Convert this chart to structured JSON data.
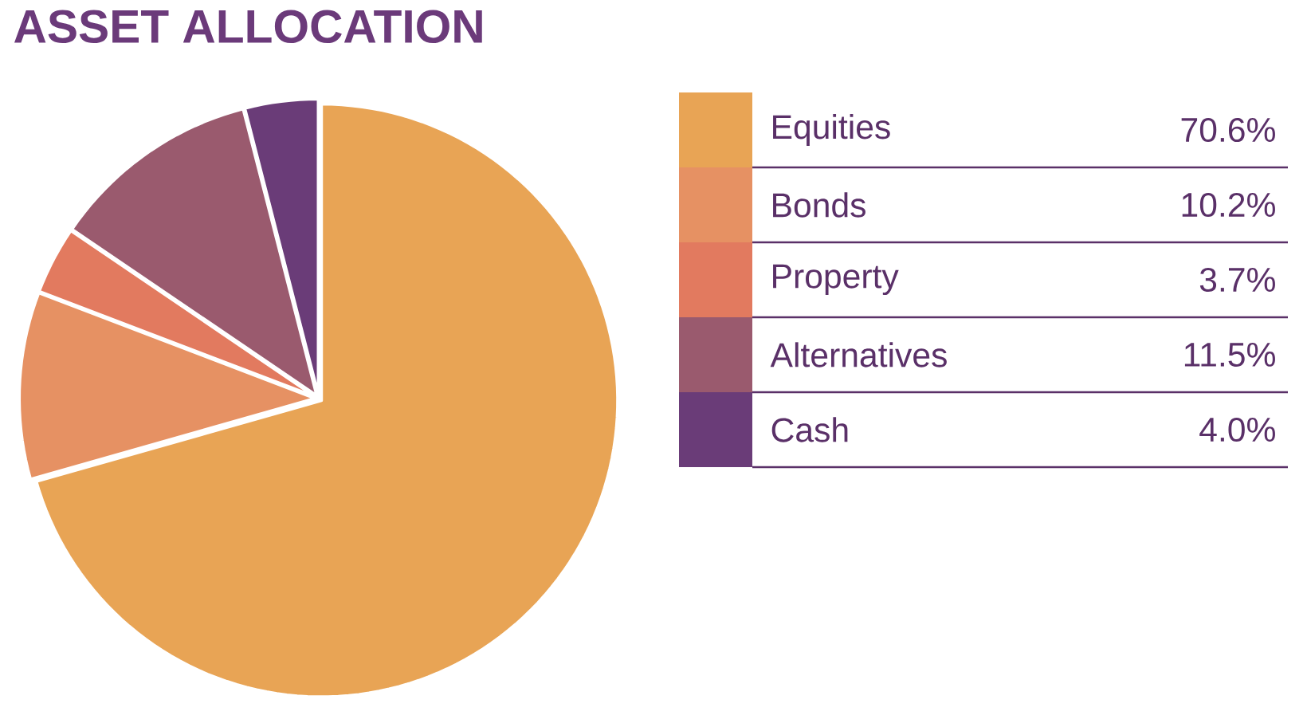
{
  "chart_data": {
    "type": "pie",
    "title": "ASSET ALLOCATION",
    "categories": [
      "Equities",
      "Bonds",
      "Property",
      "Alternatives",
      "Cash"
    ],
    "values": [
      70.6,
      10.2,
      3.7,
      11.5,
      4.0
    ],
    "value_labels": [
      "70.6%",
      "10.2%",
      "3.7%",
      "11.5%",
      "4.0%"
    ],
    "colors": [
      "#e8a455",
      "#e69163",
      "#e27a5f",
      "#9a5a6e",
      "#6a3c78"
    ],
    "legend": "right"
  }
}
